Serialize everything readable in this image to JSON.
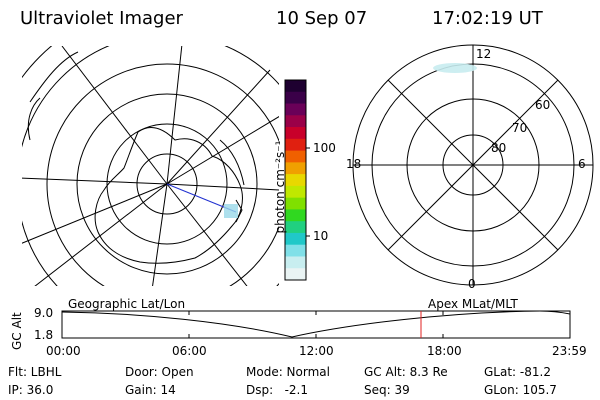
{
  "header": {
    "instrument": "Ultraviolet Imager",
    "date": "10 Sep 07",
    "time": "17:02:19 UT"
  },
  "colorbar": {
    "unit": "photon cm⁻²s⁻¹",
    "tick_100": "100",
    "tick_10": "10",
    "colors": [
      "#1e0030",
      "#3a0048",
      "#6a0058",
      "#9a0048",
      "#c8002a",
      "#e02010",
      "#f06000",
      "#f0a000",
      "#e8d800",
      "#c0e800",
      "#80e000",
      "#30d820",
      "#20d080",
      "#20c8c8",
      "#80e0e8",
      "#c8eef0",
      "#eaf4f4"
    ]
  },
  "right_map": {
    "mlt_labels": {
      "top": "12",
      "bottom": "0",
      "left": "18",
      "right": "6"
    },
    "mlat_labels": [
      "60",
      "70",
      "80"
    ]
  },
  "timeline": {
    "left_title": "Geographic Lat/Lon",
    "right_title": "Apex MLat/MLT",
    "y_axis_label": "GC Alt",
    "y_ticks": [
      "9.0",
      "1.8"
    ],
    "x_ticks": [
      "00:00",
      "06:00",
      "12:00",
      "18:00",
      "23:59"
    ],
    "marker_color": "#e02020"
  },
  "footer": {
    "flt": "Flt: LBHL",
    "ip": "IP: 36.0",
    "door": "Door: Open",
    "gain": "Gain: 14",
    "mode": "Mode: Normal",
    "dsp": "Dsp:   -2.1",
    "gcalt": "GC Alt: 8.3 Re",
    "seq": "Seq: 39",
    "glat": "GLat: -81.2",
    "glon": "GLon: 105.7"
  }
}
